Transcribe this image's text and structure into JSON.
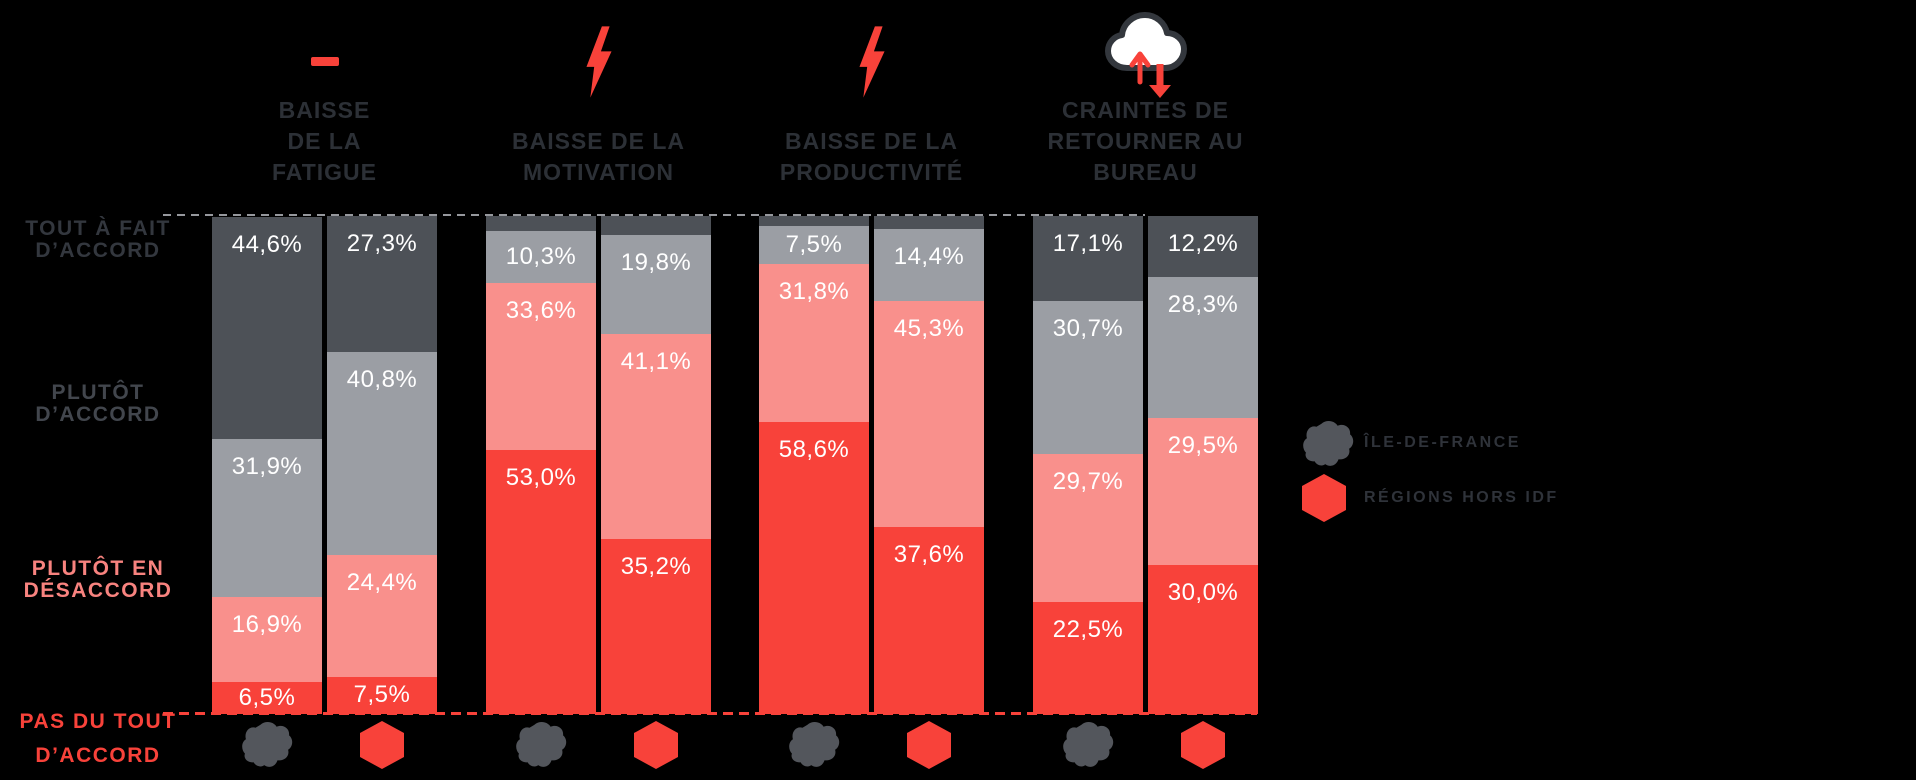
{
  "chart_data": {
    "type": "bar",
    "variant": "stacked-100-percent",
    "value_suffix": "%",
    "grid": "dashed-top-and-baseline",
    "legend_position": "right",
    "levels": [
      {
        "id": "tout-a-fait-daccord",
        "color": "#4d5157"
      },
      {
        "id": "plutot-daccord",
        "color": "#9b9ea4"
      },
      {
        "id": "plutot-en-desaccord",
        "color": "#f9908c"
      },
      {
        "id": "pas-du-tout-daccord",
        "color": "#f8423a"
      }
    ],
    "y_axis_labels": [
      {
        "lines": [
          "TOUT À FAIT",
          "D’ACCORD"
        ],
        "color": "#33373e"
      },
      {
        "lines": [
          "PLUTÔT",
          "D’ACCORD"
        ],
        "color": "#42464d"
      },
      {
        "lines": [
          "PLUTÔT EN",
          "DÉSACCORD"
        ],
        "color": "#f8837f"
      },
      {
        "lines": [
          "PAS DU TOUT",
          "D’ACCORD"
        ],
        "color": "#f8423a"
      }
    ],
    "groups": [
      {
        "id": "baisse-fatigue",
        "icon": "minus-icon",
        "title_lines": [
          "BAISSE",
          "DE LA",
          "FATIGUE"
        ],
        "bars": [
          {
            "region": "ÎLE-DE-FRANCE",
            "icon": "idf-map-icon",
            "segments": [
              {
                "level": "tout-a-faits-daccord-dark",
                "levelId": "tout-a-fait-daccord",
                "value": 44.6,
                "label": "44,6%"
              },
              {
                "levelId": "plutot-daccord",
                "value": 31.9,
                "label": "31,9%"
              },
              {
                "levelId": "plutot-en-desaccord",
                "value": 16.9,
                "label": "16,9%"
              },
              {
                "levelId": "pas-du-tout-daccord",
                "value": 6.5,
                "label": "6,5%"
              }
            ]
          },
          {
            "region": "RÉGIONS HORS IDF",
            "icon": "hexagon-icon",
            "segments": [
              {
                "levelId": "tout-a-fait-daccord",
                "value": 27.3,
                "label": "27,3%"
              },
              {
                "levelId": "plutot-daccord",
                "value": 40.8,
                "label": "40,8%"
              },
              {
                "levelId": "plutot-en-desaccord",
                "value": 24.4,
                "label": "24,4%"
              },
              {
                "levelId": "pas-du-tout-daccord",
                "value": 7.5,
                "label": "7,5%"
              }
            ]
          }
        ]
      },
      {
        "id": "baisse-motivation",
        "icon": "bolt-icon",
        "title_lines": [
          "BAISSE DE LA",
          "MOTIVATION"
        ],
        "bars": [
          {
            "region": "ÎLE-DE-FRANCE",
            "icon": "idf-map-icon",
            "segments": [
              {
                "levelId": "tout-a-fait-daccord",
                "value": 3.1,
                "label": ""
              },
              {
                "levelId": "plutot-daccord",
                "value": 10.3,
                "label": "10,3%"
              },
              {
                "levelId": "plutot-en-desaccord",
                "value": 33.6,
                "label": "33,6%"
              },
              {
                "levelId": "pas-du-tout-daccord",
                "value": 53.0,
                "label": "53,0%"
              }
            ]
          },
          {
            "region": "RÉGIONS HORS IDF",
            "icon": "hexagon-icon",
            "segments": [
              {
                "levelId": "tout-a-fait-daccord",
                "value": 3.9,
                "label": ""
              },
              {
                "levelId": "plutot-daccord",
                "value": 19.8,
                "label": "19,8%"
              },
              {
                "levelId": "plutot-en-desaccord",
                "value": 41.1,
                "label": "41,1%"
              },
              {
                "levelId": "pas-du-tout-daccord",
                "value": 35.2,
                "label": "35,2%"
              }
            ]
          }
        ]
      },
      {
        "id": "baisse-productivite",
        "icon": "bolt-icon",
        "title_lines": [
          "BAISSE DE LA",
          "PRODUCTIVITÉ"
        ],
        "bars": [
          {
            "region": "ÎLE-DE-FRANCE",
            "icon": "idf-map-icon",
            "segments": [
              {
                "levelId": "tout-a-fait-daccord",
                "value": 2.1,
                "label": ""
              },
              {
                "levelId": "plutot-daccord",
                "value": 7.5,
                "label": "7,5%"
              },
              {
                "levelId": "plutot-en-desaccord",
                "value": 31.8,
                "label": "31,8%"
              },
              {
                "levelId": "pas-du-tout-daccord",
                "value": 58.6,
                "label": "58,6%"
              }
            ]
          },
          {
            "region": "RÉGIONS HORS IDF",
            "icon": "hexagon-icon",
            "segments": [
              {
                "levelId": "tout-a-fait-daccord",
                "value": 2.7,
                "label": ""
              },
              {
                "levelId": "plutot-daccord",
                "value": 14.4,
                "label": "14,4%"
              },
              {
                "levelId": "plutot-en-desaccord",
                "value": 45.3,
                "label": "45,3%"
              },
              {
                "levelId": "pas-du-tout-daccord",
                "value": 37.6,
                "label": "37,6%"
              }
            ]
          }
        ]
      },
      {
        "id": "craintes-retour-bureau",
        "icon": "cloud-return-icon",
        "title_lines": [
          "CRAINTES DE",
          "RETOURNER AU",
          "BUREAU"
        ],
        "bars": [
          {
            "region": "ÎLE-DE-FRANCE",
            "icon": "idf-map-icon",
            "segments": [
              {
                "levelId": "tout-a-fait-daccord",
                "value": 17.1,
                "label": "17,1%"
              },
              {
                "levelId": "plutot-daccord",
                "value": 30.7,
                "label": "30,7%"
              },
              {
                "levelId": "plutot-en-desaccord",
                "value": 29.7,
                "label": "29,7%"
              },
              {
                "levelId": "pas-du-tout-daccord",
                "value": 22.5,
                "label": "22,5%"
              }
            ]
          },
          {
            "region": "RÉGIONS HORS IDF",
            "icon": "hexagon-icon",
            "segments": [
              {
                "levelId": "tout-a-fait-daccord",
                "value": 12.2,
                "label": "12,2%"
              },
              {
                "levelId": "plutot-daccord",
                "value": 28.3,
                "label": "28,3%"
              },
              {
                "levelId": "plutot-en-desaccord",
                "value": 29.5,
                "label": "29,5%"
              },
              {
                "levelId": "pas-du-tout-daccord",
                "value": 30.0,
                "label": "30,0%"
              }
            ]
          }
        ]
      }
    ],
    "legend": [
      {
        "icon": "idf-map-icon",
        "label": "ÎLE-DE-FRANCE",
        "icon_color": "#53565c"
      },
      {
        "icon": "hexagon-icon",
        "label": "RÉGIONS HORS IDF",
        "icon_color": "#f8423a"
      }
    ]
  },
  "colors": {
    "background": "#000000",
    "header_text": "#2c3036",
    "accent_red": "#f8423a",
    "salmon": "#f9908c",
    "grey": "#9b9ea4",
    "dark_grey": "#4d5157",
    "top_gridline": "#96989d",
    "cloud_outline": "#33373d",
    "value_label": "#ffffff"
  }
}
